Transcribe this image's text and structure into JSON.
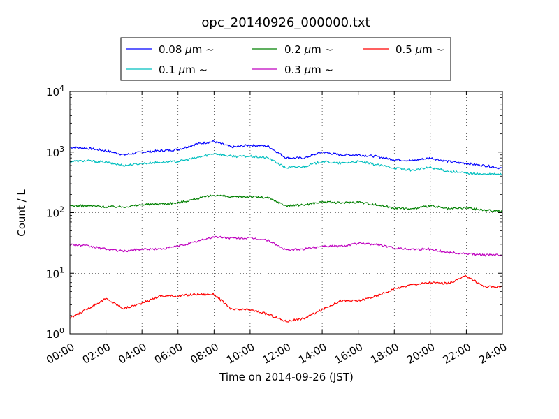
{
  "chart_data": {
    "type": "line",
    "title": "opc_20140926_000000.txt",
    "xlabel": "Time on 2014-09-26 (JST)",
    "ylabel": "Count / L",
    "yscale": "log",
    "xlim": [
      "00:00",
      "24:00"
    ],
    "ylim": [
      1,
      10000
    ],
    "grid": true,
    "legend_position": "top-center, outside plot, 3 columns",
    "x_tick_labels": [
      "00:00",
      "02:00",
      "04:00",
      "06:00",
      "08:00",
      "10:00",
      "12:00",
      "14:00",
      "16:00",
      "18:00",
      "20:00",
      "22:00",
      "24:00"
    ],
    "y_tick_labels": [
      {
        "value": 1,
        "base": "10",
        "exp": "0"
      },
      {
        "value": 10,
        "base": "10",
        "exp": "1"
      },
      {
        "value": 100,
        "base": "10",
        "exp": "2"
      },
      {
        "value": 1000,
        "base": "10",
        "exp": "3"
      },
      {
        "value": 10000,
        "base": "10",
        "exp": "4"
      }
    ],
    "x": [
      "00:00",
      "01:00",
      "02:00",
      "03:00",
      "04:00",
      "05:00",
      "06:00",
      "07:00",
      "08:00",
      "09:00",
      "10:00",
      "11:00",
      "12:00",
      "13:00",
      "14:00",
      "15:00",
      "16:00",
      "17:00",
      "18:00",
      "19:00",
      "20:00",
      "21:00",
      "22:00",
      "23:00",
      "24:00"
    ],
    "series": [
      {
        "name": "0.08 μm ~",
        "name_parts": [
          "0.08 ",
          "μ",
          "m ~"
        ],
        "color": "#0000ff",
        "values": [
          1200,
          1150,
          1050,
          900,
          1000,
          1050,
          1100,
          1350,
          1500,
          1200,
          1300,
          1250,
          800,
          800,
          1000,
          900,
          900,
          850,
          750,
          720,
          800,
          700,
          650,
          600,
          540
        ]
      },
      {
        "name": "0.1 μm ~",
        "name_parts": [
          "0.1 ",
          "μ",
          "m ~"
        ],
        "color": "#00bfbf",
        "values": [
          700,
          720,
          680,
          600,
          650,
          680,
          700,
          800,
          950,
          850,
          850,
          800,
          550,
          580,
          700,
          650,
          700,
          620,
          550,
          500,
          560,
          480,
          450,
          430,
          430
        ]
      },
      {
        "name": "0.2 μm ~",
        "name_parts": [
          "0.2 ",
          "μ",
          "m ~"
        ],
        "color": "#008000",
        "values": [
          130,
          130,
          125,
          125,
          135,
          140,
          145,
          170,
          195,
          180,
          185,
          175,
          130,
          135,
          150,
          145,
          150,
          135,
          120,
          115,
          130,
          115,
          120,
          110,
          105
        ]
      },
      {
        "name": "0.3 μm ~",
        "name_parts": [
          "0.3 ",
          "μ",
          "m ~"
        ],
        "color": "#bf00bf",
        "values": [
          30,
          28,
          25,
          23,
          25,
          25,
          28,
          33,
          40,
          38,
          38,
          35,
          24,
          25,
          28,
          28,
          31,
          30,
          26,
          25,
          25,
          22,
          21,
          20,
          20
        ]
      },
      {
        "name": "0.5 μm ~",
        "name_parts": [
          "0.5 ",
          "μ",
          "m ~"
        ],
        "color": "#ff0000",
        "values": [
          1.8,
          2.6,
          3.8,
          2.6,
          3.2,
          4.2,
          4.2,
          4.5,
          4.5,
          2.5,
          2.5,
          2.1,
          1.6,
          1.8,
          2.5,
          3.5,
          3.5,
          4.2,
          5.5,
          6.5,
          7,
          6.8,
          9,
          6,
          6
        ]
      }
    ]
  }
}
